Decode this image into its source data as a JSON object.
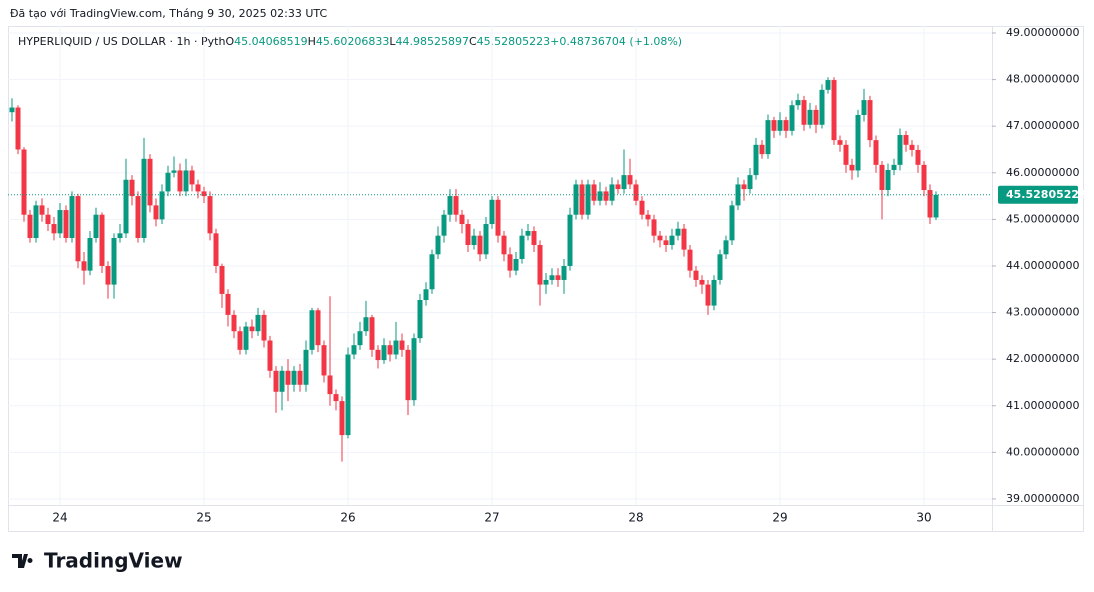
{
  "chart_data": {
    "type": "candlestick",
    "attribution": "Đã tạo với TradingView.com, Tháng 9 30, 2025 02:33 UTC",
    "title": "HYPERLIQUID / US DOLLAR · 1h · Pyth",
    "ohlc_labels": [
      "O",
      "H",
      "L",
      "C"
    ],
    "change": "+0.48736704 (+1.08%)",
    "logo": "TradingView",
    "up_color": "#089981",
    "down_color": "#f23645",
    "grid": true,
    "ylim": [
      38.87,
      49.15
    ],
    "yticks": [
      {
        "value": 39,
        "label": "39.00000000"
      },
      {
        "value": 40,
        "label": "40.00000000"
      },
      {
        "value": 41,
        "label": "41.00000000"
      },
      {
        "value": 42,
        "label": "42.00000000"
      },
      {
        "value": 43,
        "label": "43.00000000"
      },
      {
        "value": 44,
        "label": "44.00000000"
      },
      {
        "value": 45,
        "label": "45.00000000"
      },
      {
        "value": 46,
        "label": "46.00000000"
      },
      {
        "value": 47,
        "label": "47.00000000"
      },
      {
        "value": 48,
        "label": "48.00000000"
      },
      {
        "value": 49,
        "label": "49.00000000"
      }
    ],
    "categories": [
      null,
      null,
      null,
      null,
      null,
      null,
      null,
      null,
      "24",
      null,
      null,
      null,
      null,
      null,
      null,
      null,
      null,
      null,
      null,
      null,
      null,
      null,
      null,
      null,
      null,
      null,
      null,
      null,
      null,
      null,
      null,
      null,
      "25",
      null,
      null,
      null,
      null,
      null,
      null,
      null,
      null,
      null,
      null,
      null,
      null,
      null,
      null,
      null,
      null,
      null,
      null,
      null,
      null,
      null,
      null,
      null,
      "26",
      null,
      null,
      null,
      null,
      null,
      null,
      null,
      null,
      null,
      null,
      null,
      null,
      null,
      null,
      null,
      null,
      null,
      null,
      null,
      null,
      null,
      null,
      null,
      "27",
      null,
      null,
      null,
      null,
      null,
      null,
      null,
      null,
      null,
      null,
      null,
      null,
      null,
      null,
      null,
      null,
      null,
      null,
      null,
      null,
      null,
      null,
      null,
      "28",
      null,
      null,
      null,
      null,
      null,
      null,
      null,
      null,
      null,
      null,
      null,
      null,
      null,
      null,
      null,
      null,
      null,
      null,
      null,
      null,
      null,
      null,
      null,
      "29",
      null,
      null,
      null,
      null,
      null,
      null,
      null,
      null,
      null,
      null,
      null,
      null,
      null,
      null,
      null,
      null,
      null,
      null,
      null,
      null,
      null,
      null,
      null,
      "30",
      null,
      null
    ],
    "open": [
      47.3,
      47.4,
      46.5,
      45.1,
      44.6,
      45.3,
      45.1,
      44.9,
      44.7,
      45.2,
      44.6,
      45.5,
      44.1,
      43.9,
      44.6,
      45.1,
      44.0,
      43.6,
      44.6,
      44.7,
      45.85,
      45.5,
      44.6,
      46.3,
      45.3,
      45.0,
      45.6,
      46.0,
      46.05,
      45.6,
      46.05,
      45.75,
      45.6,
      45.5,
      44.7,
      44.0,
      43.4,
      42.95,
      42.6,
      42.2,
      42.7,
      42.6,
      42.95,
      42.4,
      41.75,
      41.3,
      41.75,
      41.45,
      41.75,
      41.45,
      42.2,
      43.05,
      42.3,
      41.65,
      41.25,
      41.1,
      40.37,
      42.1,
      42.3,
      42.6,
      42.9,
      42.2,
      41.98,
      42.3,
      42.1,
      42.4,
      42.2,
      41.12,
      42.45,
      43.27,
      43.5,
      44.25,
      44.65,
      45.1,
      45.5,
      45.1,
      44.9,
      44.45,
      44.65,
      44.25,
      44.9,
      45.42,
      44.65,
      44.25,
      43.9,
      44.15,
      44.65,
      44.75,
      44.45,
      43.6,
      43.7,
      43.8,
      43.7,
      44.0,
      45.1,
      45.75,
      45.1,
      45.75,
      45.4,
      45.6,
      45.4,
      45.75,
      45.65,
      45.95,
      45.75,
      45.4,
      45.1,
      45.0,
      44.65,
      44.55,
      44.45,
      44.65,
      44.8,
      44.35,
      43.9,
      43.7,
      43.6,
      43.15,
      43.7,
      44.25,
      44.55,
      45.3,
      45.75,
      45.65,
      45.95,
      46.6,
      46.4,
      47.13,
      46.9,
      47.13,
      46.9,
      47.45,
      47.56,
      47.03,
      47.35,
      47.03,
      47.78,
      47.99,
      46.7,
      46.6,
      46.17,
      46.05,
      47.24,
      47.56,
      46.7,
      46.17,
      45.63,
      46.06,
      46.17,
      46.81,
      46.6,
      46.49,
      46.17,
      45.63,
      45.04068519
    ],
    "high": [
      47.6,
      47.45,
      46.55,
      45.2,
      45.4,
      45.45,
      45.25,
      45.05,
      45.35,
      45.3,
      45.6,
      45.55,
      44.3,
      44.75,
      45.25,
      45.15,
      44.1,
      44.7,
      44.9,
      46.3,
      45.95,
      45.6,
      46.75,
      46.4,
      45.45,
      45.75,
      46.15,
      46.35,
      46.2,
      46.3,
      46.15,
      45.85,
      45.7,
      45.6,
      44.8,
      44.05,
      43.5,
      43.05,
      42.7,
      42.8,
      42.85,
      43.1,
      43.05,
      42.5,
      41.85,
      41.85,
      42.0,
      41.85,
      41.9,
      42.4,
      43.1,
      43.1,
      42.4,
      43.35,
      41.35,
      41.2,
      42.25,
      42.55,
      42.8,
      43.25,
      42.95,
      42.3,
      42.45,
      42.4,
      42.8,
      42.55,
      42.3,
      42.55,
      43.4,
      43.65,
      44.35,
      44.85,
      45.2,
      45.65,
      45.65,
      45.2,
      45.0,
      44.8,
      44.75,
      45.05,
      45.5,
      45.5,
      44.75,
      44.4,
      44.3,
      44.8,
      44.9,
      44.85,
      44.55,
      43.85,
      43.95,
      43.95,
      44.15,
      45.25,
      45.85,
      45.85,
      45.85,
      45.85,
      45.8,
      45.7,
      45.9,
      45.85,
      46.5,
      46.3,
      45.85,
      45.5,
      45.2,
      45.1,
      44.75,
      44.65,
      44.8,
      44.95,
      44.9,
      44.45,
      44.0,
      43.8,
      43.7,
      43.8,
      44.35,
      44.65,
      45.4,
      45.9,
      45.85,
      46.1,
      46.75,
      46.7,
      47.25,
      47.2,
      47.3,
      47.2,
      47.55,
      47.7,
      47.65,
      47.5,
      47.45,
      47.9,
      48.05,
      48.05,
      46.8,
      46.7,
      46.3,
      47.35,
      47.8,
      47.65,
      46.8,
      46.25,
      46.2,
      46.3,
      46.95,
      46.9,
      46.7,
      46.6,
      46.25,
      45.75,
      45.60206833
    ],
    "low": [
      47.1,
      46.4,
      44.95,
      44.5,
      44.5,
      44.95,
      44.75,
      44.55,
      44.6,
      44.5,
      44.5,
      43.95,
      43.6,
      43.8,
      44.5,
      43.85,
      43.3,
      43.3,
      44.5,
      44.6,
      45.3,
      44.5,
      44.5,
      45.15,
      44.85,
      44.9,
      45.5,
      45.9,
      45.5,
      45.5,
      45.6,
      45.45,
      45.35,
      44.55,
      43.85,
      43.1,
      42.7,
      42.45,
      42.1,
      42.1,
      42.45,
      42.5,
      42.25,
      41.6,
      40.85,
      40.9,
      41.1,
      41.3,
      41.3,
      41.3,
      42.1,
      42.15,
      41.5,
      41.0,
      40.9,
      39.8,
      40.3,
      42.0,
      42.2,
      42.5,
      42.05,
      41.8,
      41.9,
      41.95,
      42.0,
      42.05,
      40.8,
      41.0,
      42.35,
      43.15,
      43.4,
      44.15,
      44.5,
      44.95,
      44.95,
      44.7,
      44.3,
      44.35,
      44.1,
      44.15,
      44.8,
      44.5,
      44.1,
      43.75,
      43.8,
      44.05,
      44.55,
      44.3,
      43.15,
      43.4,
      43.6,
      43.55,
      43.4,
      43.9,
      45.0,
      45.0,
      45.0,
      45.3,
      45.3,
      45.3,
      45.3,
      45.55,
      45.55,
      45.65,
      45.3,
      45.0,
      44.85,
      44.5,
      44.4,
      44.3,
      44.35,
      44.55,
      44.2,
      43.75,
      43.55,
      43.4,
      42.95,
      43.05,
      43.6,
      44.15,
      44.45,
      45.2,
      45.4,
      45.55,
      45.85,
      46.3,
      46.3,
      46.75,
      46.8,
      46.75,
      46.8,
      47.35,
      46.9,
      46.95,
      46.85,
      46.95,
      47.7,
      46.6,
      46.45,
      46.0,
      45.85,
      45.9,
      47.1,
      46.55,
      46.0,
      45.0,
      45.5,
      45.95,
      46.05,
      46.45,
      46.35,
      46.0,
      45.5,
      44.9,
      44.98525897
    ],
    "close": [
      47.4,
      46.5,
      45.1,
      44.6,
      45.3,
      45.1,
      44.9,
      44.7,
      45.2,
      44.6,
      45.5,
      44.1,
      43.9,
      44.6,
      45.1,
      44.0,
      43.6,
      44.6,
      44.7,
      45.85,
      45.5,
      44.6,
      46.3,
      45.3,
      45.0,
      45.6,
      46.0,
      46.05,
      45.6,
      46.05,
      45.75,
      45.6,
      45.5,
      44.7,
      44.0,
      43.4,
      42.95,
      42.6,
      42.2,
      42.7,
      42.6,
      42.95,
      42.4,
      41.75,
      41.3,
      41.75,
      41.45,
      41.75,
      41.45,
      42.2,
      43.05,
      42.3,
      41.65,
      41.25,
      41.1,
      40.37,
      42.1,
      42.3,
      42.6,
      42.9,
      42.2,
      41.98,
      42.3,
      42.1,
      42.4,
      42.2,
      41.12,
      42.45,
      43.27,
      43.5,
      44.25,
      44.65,
      45.1,
      45.5,
      45.1,
      44.9,
      44.45,
      44.65,
      44.25,
      44.9,
      45.42,
      44.65,
      44.25,
      43.9,
      44.15,
      44.65,
      44.75,
      44.45,
      43.6,
      43.7,
      43.8,
      43.7,
      44.0,
      45.1,
      45.75,
      45.1,
      45.75,
      45.4,
      45.6,
      45.4,
      45.75,
      45.65,
      45.95,
      45.75,
      45.4,
      45.1,
      45.0,
      44.65,
      44.55,
      44.45,
      44.65,
      44.8,
      44.35,
      43.9,
      43.7,
      43.6,
      43.15,
      43.7,
      44.25,
      44.55,
      45.3,
      45.75,
      45.65,
      45.95,
      46.6,
      46.4,
      47.13,
      46.9,
      47.13,
      46.9,
      47.45,
      47.56,
      47.03,
      47.35,
      47.03,
      47.78,
      47.99,
      46.7,
      46.6,
      46.17,
      46.05,
      47.24,
      47.56,
      46.7,
      46.17,
      45.63,
      46.06,
      46.17,
      46.81,
      46.6,
      46.49,
      46.17,
      45.63,
      45.04,
      45.52805223
    ]
  }
}
